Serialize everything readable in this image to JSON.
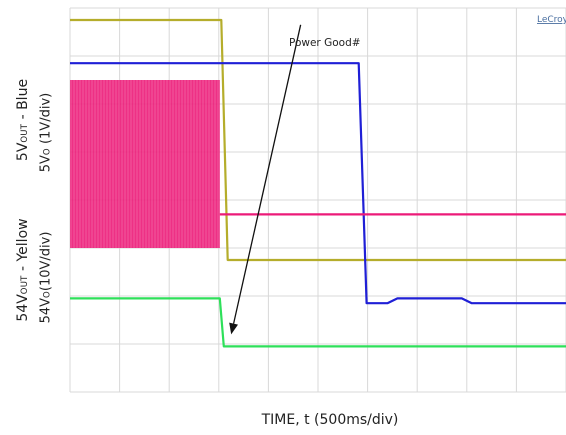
{
  "chart_data": {
    "type": "line",
    "brand": "LeCroy",
    "annotation": "Power Good#",
    "xlabel": "TIME, t (500ms/div)",
    "ylabel_left": [
      {
        "main": "5V",
        "sub": "OUT",
        "rest": " - Blue"
      },
      {
        "main": "54V",
        "sub": "OUT",
        "rest": " - Yellow"
      }
    ],
    "ylabel_right": [
      {
        "main": "5V",
        "sub": "O",
        "rest": " (1V/div)"
      },
      {
        "main": "54V",
        "sub": "O",
        "rest": "(10V/div)"
      }
    ],
    "grid": {
      "divisions_x": 10,
      "divisions_y": 8
    },
    "x_range_div": [
      0,
      10
    ],
    "y_range_div": [
      0,
      8
    ],
    "series": [
      {
        "color": "#b5ad2b",
        "values": [
          [
            0,
            7.75
          ],
          [
            3.05,
            7.75
          ],
          [
            3.18,
            2.75
          ],
          [
            10,
            2.75
          ]
        ]
      },
      {
        "color": "#1f1fd6",
        "values": [
          [
            0,
            6.85
          ],
          [
            5.82,
            6.85
          ],
          [
            5.98,
            1.85
          ],
          [
            6.4,
            1.85
          ],
          [
            6.6,
            1.95
          ],
          [
            7.9,
            1.95
          ],
          [
            8.1,
            1.85
          ],
          [
            10,
            1.85
          ]
        ]
      },
      {
        "color": "#ec1a78",
        "band": [
          0,
          3.02,
          3.0,
          6.5
        ],
        "values": [
          [
            3.02,
            3.7
          ],
          [
            10,
            3.7
          ]
        ]
      },
      {
        "color": "#2ee05a",
        "values": [
          [
            0,
            1.95
          ],
          [
            3.02,
            1.95
          ],
          [
            3.1,
            0.95
          ],
          [
            10,
            0.95
          ]
        ]
      }
    ],
    "arrow": {
      "from": [
        4.65,
        7.65
      ],
      "to": [
        3.25,
        1.2
      ]
    }
  }
}
